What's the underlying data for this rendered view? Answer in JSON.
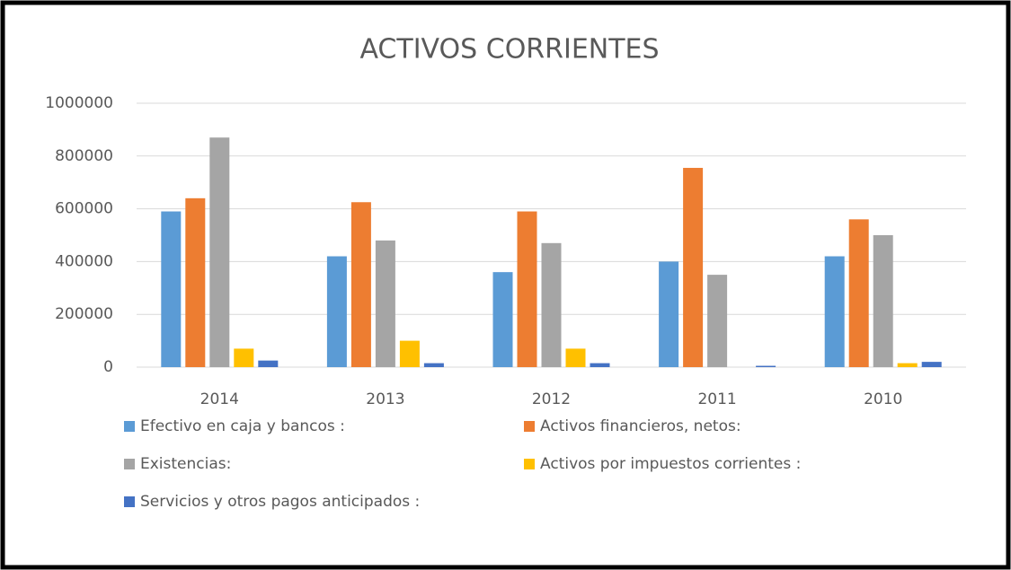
{
  "chart_data": {
    "type": "bar",
    "title": "ACTIVOS CORRIENTES",
    "categories": [
      "2014",
      "2013",
      "2012",
      "2011",
      "2010"
    ],
    "series": [
      {
        "name": "Efectivo en caja y bancos :",
        "color": "#5b9bd5",
        "values": [
          590000,
          420000,
          360000,
          400000,
          420000
        ]
      },
      {
        "name": "Activos financieros, netos:",
        "color": "#ed7d31",
        "values": [
          640000,
          625000,
          590000,
          755000,
          560000
        ]
      },
      {
        "name": "Existencias:",
        "color": "#a5a5a5",
        "values": [
          870000,
          480000,
          470000,
          350000,
          500000
        ]
      },
      {
        "name": "Activos por impuestos corrientes :",
        "color": "#ffc000",
        "values": [
          70000,
          100000,
          70000,
          0,
          15000
        ]
      },
      {
        "name": "Servicios y otros pagos anticipados :",
        "color": "#4472c4",
        "values": [
          25000,
          15000,
          15000,
          5000,
          20000
        ]
      }
    ],
    "ylim": [
      0,
      1000000
    ],
    "yticks": [
      0,
      200000,
      400000,
      600000,
      800000,
      1000000
    ],
    "grid": true
  }
}
